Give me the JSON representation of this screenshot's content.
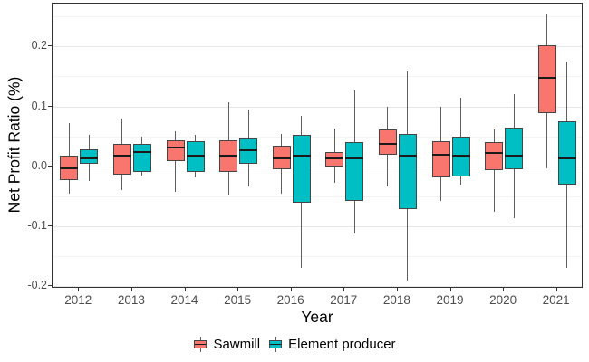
{
  "chart_data": {
    "type": "boxplot",
    "title": "",
    "xlabel": "Year",
    "ylabel": "Net Profit Ratio (%)",
    "categories": [
      "2012",
      "2013",
      "2014",
      "2015",
      "2016",
      "2017",
      "2018",
      "2019",
      "2020",
      "2021"
    ],
    "ylim": [
      -0.204,
      0.2715
    ],
    "y_ticks": [
      0.2,
      0.1,
      0.0,
      -0.1,
      -0.2
    ],
    "y_tick_labels": [
      "0.2",
      "0.1",
      "0.0",
      "-0.1",
      "-0.2"
    ],
    "y_minor_gridlines": [
      0.25,
      0.15,
      0.05,
      -0.05,
      -0.15
    ],
    "grid": true,
    "legend_position": "bottom",
    "series": [
      {
        "name": "Sawmill",
        "color": "#F8766D",
        "boxes": [
          {
            "low": -0.045,
            "q1": -0.023,
            "median": -0.003,
            "q3": 0.018,
            "high": 0.072
          },
          {
            "low": -0.04,
            "q1": -0.014,
            "median": 0.017,
            "q3": 0.037,
            "high": 0.08
          },
          {
            "low": -0.043,
            "q1": 0.009,
            "median": 0.031,
            "q3": 0.043,
            "high": 0.059
          },
          {
            "low": -0.048,
            "q1": -0.01,
            "median": 0.017,
            "q3": 0.043,
            "high": 0.107
          },
          {
            "low": -0.045,
            "q1": -0.005,
            "median": 0.013,
            "q3": 0.034,
            "high": 0.054
          },
          {
            "low": -0.027,
            "q1": 0.0,
            "median": 0.014,
            "q3": 0.024,
            "high": 0.063
          },
          {
            "low": -0.034,
            "q1": 0.02,
            "median": 0.037,
            "q3": 0.061,
            "high": 0.1
          },
          {
            "low": -0.058,
            "q1": -0.018,
            "median": 0.02,
            "q3": 0.042,
            "high": 0.1
          },
          {
            "low": -0.076,
            "q1": -0.006,
            "median": 0.023,
            "q3": 0.041,
            "high": 0.061
          },
          {
            "low": -0.003,
            "q1": 0.089,
            "median": 0.148,
            "q3": 0.202,
            "high": 0.253
          }
        ]
      },
      {
        "name": "Element producer",
        "color": "#00BFC4",
        "boxes": [
          {
            "low": -0.025,
            "q1": 0.004,
            "median": 0.014,
            "q3": 0.028,
            "high": 0.052
          },
          {
            "low": -0.015,
            "q1": -0.01,
            "median": 0.024,
            "q3": 0.038,
            "high": 0.049
          },
          {
            "low": -0.019,
            "q1": -0.01,
            "median": 0.017,
            "q3": 0.042,
            "high": 0.053
          },
          {
            "low": -0.033,
            "q1": 0.004,
            "median": 0.027,
            "q3": 0.047,
            "high": 0.095
          },
          {
            "low": -0.17,
            "q1": -0.06,
            "median": 0.018,
            "q3": 0.053,
            "high": 0.084
          },
          {
            "low": -0.112,
            "q1": -0.058,
            "median": 0.013,
            "q3": 0.041,
            "high": 0.127
          },
          {
            "low": -0.19,
            "q1": -0.071,
            "median": 0.018,
            "q3": 0.054,
            "high": 0.159
          },
          {
            "low": -0.031,
            "q1": -0.017,
            "median": 0.017,
            "q3": 0.05,
            "high": 0.115
          },
          {
            "low": -0.087,
            "q1": -0.004,
            "median": 0.018,
            "q3": 0.064,
            "high": 0.12
          },
          {
            "low": -0.17,
            "q1": -0.03,
            "median": 0.013,
            "q3": 0.076,
            "high": 0.175
          }
        ]
      }
    ]
  }
}
